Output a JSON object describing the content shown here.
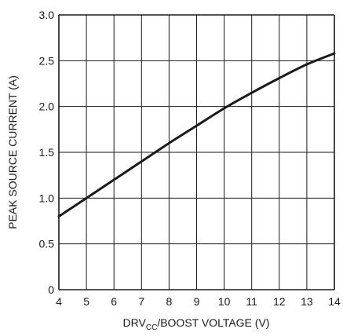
{
  "chart_data": {
    "type": "line",
    "title": "",
    "xlabel_main": "DRV",
    "xlabel_sub": "CC",
    "xlabel_rest": "/BOOST VOLTAGE (V)",
    "ylabel": "PEAK SOURCE CURRENT (A)",
    "xlim": [
      4,
      14
    ],
    "ylim": [
      0,
      3.0
    ],
    "x_ticks": [
      "4",
      "5",
      "6",
      "7",
      "8",
      "9",
      "10",
      "11",
      "12",
      "13",
      "14"
    ],
    "y_ticks": [
      "0",
      "0.5",
      "1.0",
      "1.5",
      "2.0",
      "2.5",
      "3.0"
    ],
    "grid": true,
    "series": [
      {
        "x": [
          4,
          5,
          6,
          7,
          8,
          9,
          10,
          11,
          12,
          13,
          14
        ],
        "y": [
          0.8,
          1.0,
          1.2,
          1.4,
          1.6,
          1.79,
          1.98,
          2.15,
          2.31,
          2.46,
          2.58
        ]
      }
    ],
    "colors": {
      "line": "#1a1a1a",
      "grid": "#1a1a1a"
    }
  }
}
